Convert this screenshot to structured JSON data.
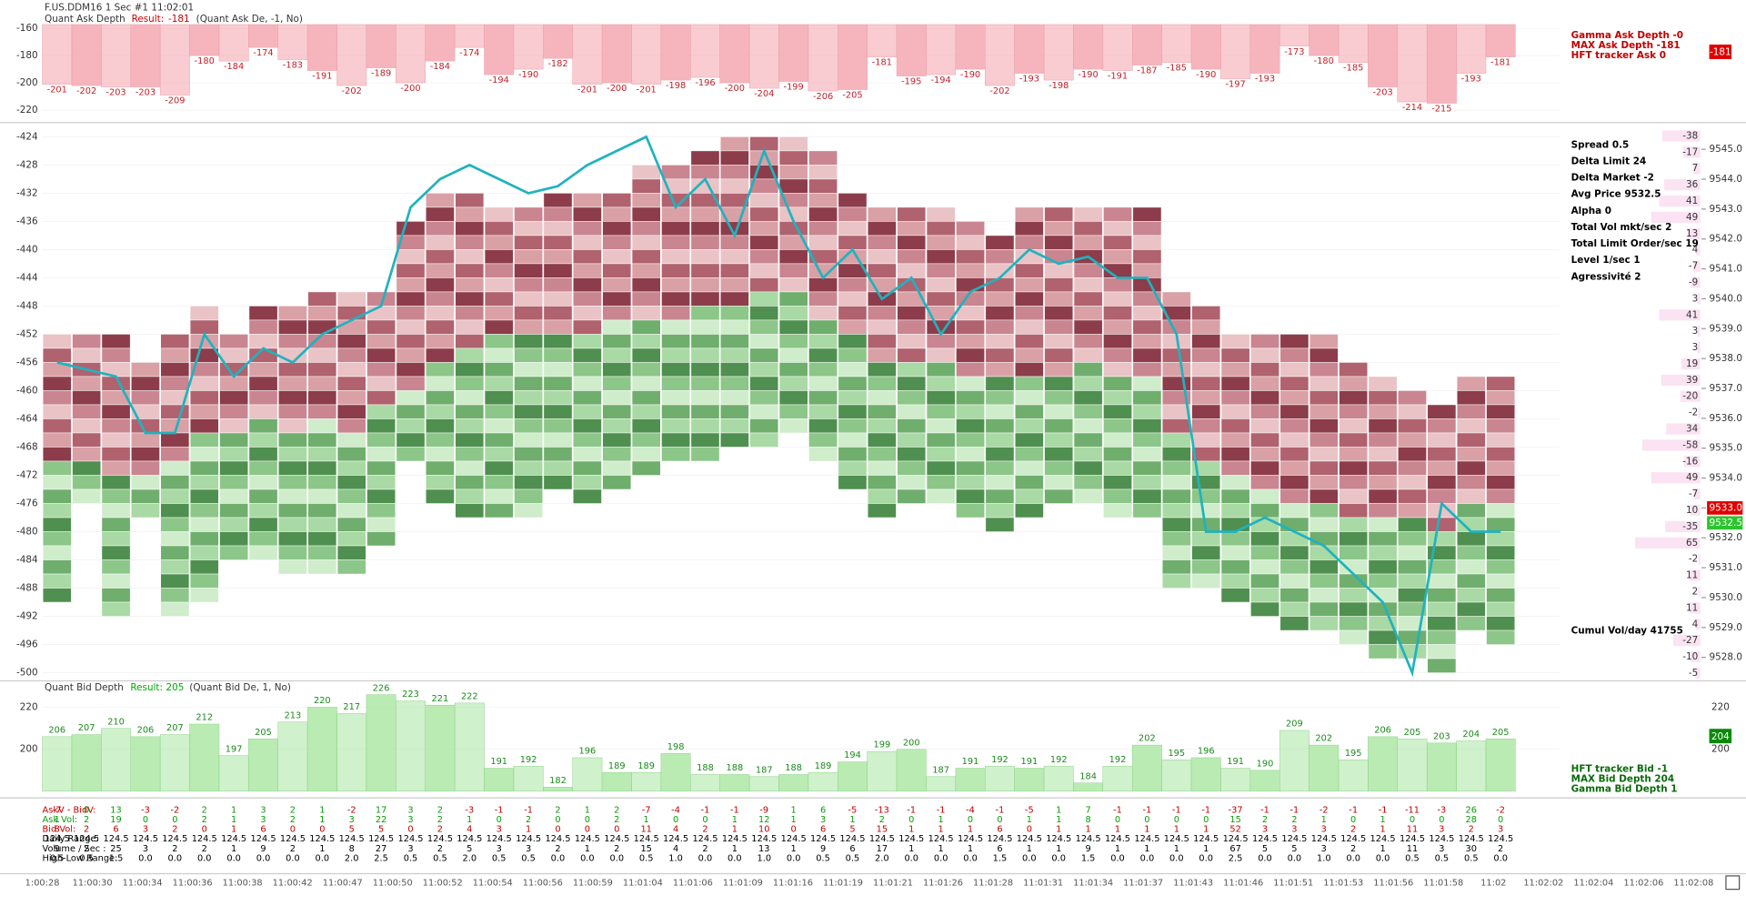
{
  "header": {
    "instrument": "F.US.DDM16  1 Sec  #1 11:02:01"
  },
  "ask_depth": {
    "label": "Quant Ask Depth",
    "result_label": "Result:",
    "result": -181,
    "params": "(Quant Ask De, -1, No)",
    "ylim": [
      -221,
      -149
    ],
    "yticks": [
      -160,
      -180,
      -200,
      -220
    ],
    "color": "#f4a3ad",
    "values": [
      -201,
      -202,
      -203,
      -203,
      -209,
      -180,
      -184,
      -174,
      -183,
      -191,
      -202,
      -189,
      -200,
      -184,
      -174,
      -194,
      -190,
      -182,
      -201,
      -200,
      -201,
      -198,
      -196,
      -200,
      -204,
      -199,
      -206,
      -205,
      -181,
      -195,
      -194,
      -190,
      -202,
      -193,
      -198,
      -190,
      -191,
      -187,
      -185,
      -190,
      -197,
      -193,
      -173,
      -180,
      -185,
      -203,
      -214,
      -215,
      -193,
      -181
    ]
  },
  "main": {
    "ylim": [
      -501,
      -422.3
    ],
    "yticks": [
      -424,
      -428,
      -432,
      -436,
      -440,
      -444,
      -448,
      -452,
      -456,
      -460,
      -464,
      -468,
      -472,
      -476,
      -480,
      -484,
      -488,
      -492,
      -496,
      -500
    ],
    "y2lim": [
      9527.25,
      9545.82
    ],
    "y2ticks": [
      {
        "value": 9545,
        "label": "9545.0"
      },
      {
        "value": 9544,
        "label": "9544.0"
      },
      {
        "value": 9543,
        "label": "9543.0"
      },
      {
        "value": 9542,
        "label": "9542.0"
      },
      {
        "value": 9541,
        "label": "9541.0"
      },
      {
        "value": 9540,
        "label": "9540.0"
      },
      {
        "value": 9539,
        "label": "9539.0"
      },
      {
        "value": 9538,
        "label": "9538.0"
      },
      {
        "value": 9537,
        "label": "9537.0"
      },
      {
        "value": 9536,
        "label": "9536.0"
      },
      {
        "value": 9535,
        "label": "9535.0"
      },
      {
        "value": 9534,
        "label": "9534.0"
      },
      {
        "value": 9533,
        "label": "9533.0"
      },
      {
        "value": 9532,
        "label": "9532.0"
      },
      {
        "value": 9531,
        "label": "9531.0"
      },
      {
        "value": 9530,
        "label": "9530.0"
      },
      {
        "value": 9529,
        "label": "9529.0"
      },
      {
        "value": 9528,
        "label": "9528.0"
      }
    ],
    "best_ask": {
      "value": 9533,
      "label": "9533.0"
    },
    "best_bid": {
      "value": 9532.5,
      "label": "9532.5"
    },
    "high": [
      -452,
      -452,
      -452,
      -456,
      -452,
      -448,
      -452,
      -448,
      -448,
      -446,
      -446,
      -446,
      -436,
      -432,
      -432,
      -434,
      -434,
      -432,
      -432,
      -432,
      -428,
      -428,
      -426,
      -424,
      -424,
      -424,
      -426,
      -432,
      -434,
      -434,
      -434,
      -436,
      -438,
      -434,
      -434,
      -434,
      -434,
      -434,
      -446,
      -448,
      -452,
      -452,
      -452,
      -452,
      -456,
      -458,
      -460,
      -462,
      -458,
      -458
    ],
    "split": [
      -470,
      -470,
      -472,
      -472,
      -470,
      -466,
      -466,
      -464,
      -466,
      -464,
      -466,
      -462,
      -460,
      -456,
      -454,
      -452,
      -452,
      -452,
      -452,
      -450,
      -450,
      -450,
      -448,
      -448,
      -446,
      -446,
      -450,
      -452,
      -456,
      -456,
      -456,
      -458,
      -458,
      -458,
      -458,
      -456,
      -458,
      -458,
      -466,
      -470,
      -472,
      -474,
      -476,
      -476,
      -478,
      -478,
      -478,
      -480,
      -476,
      -476
    ],
    "low": [
      -490,
      -476,
      -492,
      -478,
      -492,
      -490,
      -484,
      -484,
      -486,
      -486,
      -486,
      -482,
      -470,
      -476,
      -478,
      -478,
      -478,
      -474,
      -476,
      -474,
      -472,
      -470,
      -470,
      -468,
      -468,
      -466,
      -470,
      -474,
      -478,
      -476,
      -476,
      -478,
      -480,
      -478,
      -476,
      -476,
      -478,
      -478,
      -488,
      -488,
      -490,
      -492,
      -494,
      -494,
      -496,
      -498,
      -498,
      -500,
      -494,
      -496
    ],
    "line_color": "#1fb3be",
    "line": [
      -456,
      -457,
      -458,
      -466,
      -466,
      -452,
      -458,
      -454,
      -456,
      -452,
      -450,
      -448,
      -434,
      -430,
      -428,
      -430,
      -432,
      -431,
      -428,
      -426,
      -424,
      -434,
      -430,
      -438,
      -426,
      -436,
      -444,
      -440,
      -447,
      -444,
      -452,
      -446,
      -444,
      -440,
      -442,
      -441,
      -444,
      -444,
      -452,
      -480,
      -480,
      -478,
      -480,
      -482,
      -486,
      -490,
      -500,
      -476,
      -480,
      -480
    ],
    "level_deltas": [
      -38,
      -17,
      7,
      36,
      41,
      49,
      13,
      4,
      -7,
      -9,
      3,
      41,
      3,
      3,
      19,
      39,
      -20,
      -2,
      34,
      -58,
      -16,
      49,
      -7,
      10,
      -35,
      65,
      -2,
      11,
      2,
      11,
      4,
      -27,
      -10,
      -5
    ]
  },
  "bid_depth": {
    "label": "Quant Bid Depth",
    "result_label": "Result:",
    "result": 205,
    "params": "(Quant Bid De, 1, No)",
    "current": 204,
    "ylim": [
      179,
      232
    ],
    "yticks": [
      220,
      200
    ],
    "color": "#a8e6a0",
    "values": [
      206,
      207,
      210,
      206,
      207,
      212,
      197,
      205,
      213,
      220,
      217,
      226,
      223,
      221,
      222,
      191,
      192,
      182,
      196,
      189,
      189,
      198,
      188,
      188,
      187,
      188,
      189,
      194,
      199,
      200,
      187,
      191,
      192,
      191,
      192,
      184,
      192,
      202,
      195,
      196,
      191,
      190,
      209,
      202,
      195,
      206,
      205,
      203,
      204,
      205
    ]
  },
  "stats": {
    "ask": [
      "Gamma Ask Depth -0",
      "MAX Ask Depth -181",
      "HFT tracker Ask  0"
    ],
    "main": [
      "Spread 0.5",
      "Delta Limit 24",
      "Delta Market -2",
      "Avg Price 9532.5",
      "Alpha 0",
      "Total Vol mkt/sec 2",
      "Total Limit Order/sec 19",
      "Level 1/sec 1",
      "Agressivité 2"
    ],
    "cumul": "Cumul Vol/day 41755",
    "bid": [
      "HFT tracker Bid -1",
      "MAX Bid Depth 204",
      "Gamma Bid Depth 1"
    ]
  },
  "table": {
    "rows": [
      {
        "label": "AskV - BidV:",
        "values": [
          -7,
          0,
          13,
          -3,
          -2,
          2,
          1,
          3,
          2,
          1,
          -2,
          17,
          3,
          2,
          -3,
          -1,
          -1,
          2,
          1,
          2,
          -7,
          -4,
          -1,
          -1,
          -9,
          1,
          6,
          -5,
          -13,
          -1,
          -1,
          -4,
          -1,
          -5,
          1,
          7,
          -1,
          -1,
          -1,
          -1,
          -37,
          -1,
          -1,
          -2,
          -1,
          -1,
          -11,
          -3,
          26,
          -2
        ]
      },
      {
        "label": "Ask Vol:",
        "values": [
          1,
          2,
          19,
          0,
          0,
          2,
          1,
          3,
          2,
          1,
          3,
          22,
          3,
          2,
          1,
          0,
          2,
          0,
          0,
          2,
          1,
          0,
          0,
          1,
          12,
          1,
          3,
          1,
          2,
          0,
          1,
          0,
          0,
          1,
          1,
          8,
          0,
          0,
          0,
          0,
          15,
          2,
          2,
          1,
          0,
          1,
          0,
          0,
          28,
          0
        ]
      },
      {
        "label": "Bid Vol:",
        "values": [
          8,
          2,
          6,
          3,
          2,
          0,
          1,
          6,
          0,
          0,
          5,
          5,
          0,
          2,
          4,
          3,
          1,
          0,
          0,
          0,
          11,
          4,
          2,
          1,
          10,
          0,
          6,
          5,
          15,
          1,
          1,
          1,
          6,
          0,
          1,
          1,
          1,
          1,
          1,
          1,
          52,
          3,
          3,
          3,
          2,
          1,
          11,
          3,
          2,
          3
        ]
      },
      {
        "label": "Daily Range:",
        "values": [
          124.5,
          124.5,
          124.5,
          124.5,
          124.5,
          124.5,
          124.5,
          124.5,
          124.5,
          124.5,
          124.5,
          124.5,
          124.5,
          124.5,
          124.5,
          124.5,
          124.5,
          124.5,
          124.5,
          124.5,
          124.5,
          124.5,
          124.5,
          124.5,
          124.5,
          124.5,
          124.5,
          124.5,
          124.5,
          124.5,
          124.5,
          124.5,
          124.5,
          124.5,
          124.5,
          124.5,
          124.5,
          124.5,
          124.5,
          124.5,
          124.5,
          124.5,
          124.5,
          124.5,
          124.5,
          124.5,
          124.5,
          124.5,
          124.5,
          124.5
        ]
      },
      {
        "label": "Volume / Sec :",
        "values": [
          9,
          2,
          25,
          3,
          2,
          2,
          1,
          9,
          2,
          1,
          8,
          27,
          3,
          2,
          5,
          3,
          3,
          2,
          1,
          2,
          15,
          4,
          2,
          1,
          13,
          1,
          9,
          6,
          17,
          1,
          1,
          1,
          6,
          1,
          1,
          9,
          1,
          1,
          1,
          1,
          67,
          5,
          5,
          3,
          2,
          1,
          11,
          3,
          30,
          2
        ]
      },
      {
        "label": "High-Low Range:",
        "values": [
          "0.5",
          "0.5",
          "1.5",
          "0.0",
          "0.0",
          "0.0",
          "0.0",
          "0.0",
          "0.0",
          "0.0",
          "2.0",
          "2.5",
          "0.5",
          "0.5",
          "2.0",
          "0.5",
          "0.5",
          "0.0",
          "0.0",
          "0.0",
          "0.5",
          "1.0",
          "0.0",
          "0.0",
          "1.0",
          "0.0",
          "0.5",
          "0.5",
          "2.0",
          "0.0",
          "0.0",
          "0.0",
          "1.5",
          "0.0",
          "0.0",
          "1.5",
          "0.0",
          "0.0",
          "0.0",
          "0.0",
          "2.5",
          "0.0",
          "0.0",
          "1.0",
          "0.0",
          "0.0",
          "0.5",
          "0.5",
          "0.5",
          "0.0"
        ]
      }
    ]
  },
  "time_axis": [
    "1:00:28",
    "11:00:30",
    "11:00:34",
    "11:00:36",
    "11:00:38",
    "11:00:42",
    "11:00:47",
    "11:00:50",
    "11:00:52",
    "11:00:54",
    "11:00:56",
    "11:00:59",
    "11:01:04",
    "11:01:06",
    "11:01:09",
    "11:01:16",
    "11:01:19",
    "11:01:21",
    "11:01:26",
    "11:01:28",
    "11:01:31",
    "11:01:34",
    "11:01:37",
    "11:01:43",
    "11:01:46",
    "11:01:51",
    "11:01:53",
    "11:01:56",
    "11:01:58",
    "11:02",
    "11:02:02",
    "11:02:04",
    "11:02:06",
    "11:02:08"
  ]
}
